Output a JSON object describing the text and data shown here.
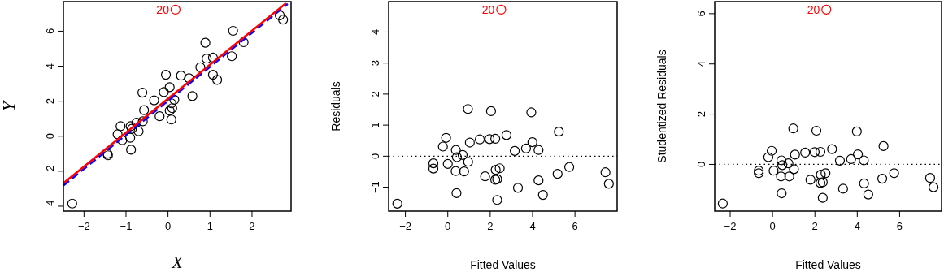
{
  "chart_data": [
    {
      "type": "scatter",
      "xlabel": "X",
      "ylabel": "Y",
      "xlim": [
        -2.49,
        2.93
      ],
      "ylim": [
        -4.28,
        7.69
      ],
      "xticks": [
        -2,
        -1,
        0,
        1,
        2
      ],
      "yticks": [
        -4,
        -2,
        0,
        2,
        4,
        6
      ],
      "marker": "circle",
      "annotations": [
        {
          "text": "20",
          "x": 0.18,
          "y": 7.23
        }
      ],
      "series": [
        {
          "color": "#000000",
          "x": [
            -2.28,
            -1.44,
            -1.43,
            -1.13,
            -1.2,
            -1.09,
            -0.9,
            -0.89,
            -0.88,
            -0.86,
            -0.75,
            -0.7,
            -0.6,
            -0.61,
            -0.57,
            -0.33,
            -0.2,
            -0.1,
            -0.05,
            0.04,
            0.08,
            0.15,
            0.1,
            0.04,
            0.08,
            0.31,
            0.5,
            0.58,
            0.77,
            0.89,
            0.92,
            1.07,
            1.07,
            1.17,
            1.52,
            1.55,
            1.8,
            2.66,
            2.74
          ],
          "values": [
            -3.85,
            -1.0,
            -1.09,
            0.57,
            0.11,
            -0.23,
            -0.09,
            0.57,
            -0.77,
            0.42,
            0.77,
            0.28,
            0.85,
            2.49,
            1.49,
            2.05,
            1.14,
            2.52,
            3.51,
            2.8,
            1.88,
            2.08,
            1.6,
            1.46,
            0.95,
            3.46,
            3.31,
            2.29,
            3.94,
            5.34,
            4.43,
            4.49,
            3.51,
            3.22,
            4.57,
            6.02,
            5.37,
            6.91,
            6.66
          ]
        },
        {
          "color": "#ff0000",
          "x": [
            0.18
          ],
          "values": [
            7.23
          ]
        },
        {
          "type": "line",
          "color": "#0000ff",
          "line_style": "dashed",
          "marker": "none",
          "x": [
            -2.49,
            2.85
          ],
          "values": [
            -2.82,
            7.56
          ]
        },
        {
          "type": "line",
          "color": "#ff0000",
          "line_style": "solid",
          "marker": "none",
          "x": [
            -2.49,
            2.81
          ],
          "values": [
            -2.69,
            7.6
          ]
        }
      ]
    },
    {
      "type": "scatter",
      "xlabel": "Fitted Values",
      "ylabel": "Residuals",
      "xlim": [
        -2.79,
        7.99
      ],
      "ylim": [
        -1.77,
        4.98
      ],
      "xticks": [
        -2,
        0,
        2,
        4,
        6
      ],
      "yticks": [
        -1,
        0,
        1,
        2,
        3,
        4
      ],
      "marker": "circle",
      "annotations": [
        {
          "text": "20",
          "x": 2.52,
          "y": 4.72
        }
      ],
      "ref_lines": [
        {
          "axis": "y",
          "value": 0,
          "line_style": "dotted",
          "color": "#000000"
        }
      ],
      "series": [
        {
          "color": "#000000",
          "x": [
            -2.38,
            -0.68,
            -0.68,
            -0.08,
            -0.23,
            0.0,
            0.37,
            0.38,
            0.41,
            0.43,
            0.7,
            0.77,
            0.96,
            0.95,
            1.04,
            1.51,
            1.76,
            1.97,
            2.04,
            2.24,
            2.26,
            2.45,
            2.24,
            2.33,
            2.33,
            2.77,
            3.16,
            3.31,
            3.69,
            3.94,
            3.99,
            4.28,
            4.28,
            4.49,
            5.18,
            5.24,
            5.73,
            7.44,
            7.6
          ],
          "values": [
            -1.53,
            -0.23,
            -0.4,
            0.59,
            0.31,
            -0.25,
            -0.48,
            0.2,
            -1.19,
            -0.03,
            0.04,
            -0.49,
            -0.18,
            1.52,
            0.44,
            0.54,
            -0.65,
            0.55,
            1.45,
            0.56,
            -0.44,
            -0.39,
            -0.76,
            -0.74,
            -1.41,
            0.68,
            0.17,
            -1.02,
            0.25,
            1.41,
            0.45,
            0.2,
            -0.78,
            -1.25,
            -0.57,
            0.79,
            -0.35,
            -0.52,
            -0.89
          ]
        },
        {
          "color": "#ff0000",
          "x": [
            2.52
          ],
          "values": [
            4.72
          ]
        }
      ]
    },
    {
      "type": "scatter",
      "xlabel": "Fitted Values",
      "ylabel": "Studentized Residuals",
      "xlim": [
        -2.73,
        7.98
      ],
      "ylim": [
        -1.86,
        6.48
      ],
      "xticks": [
        -2,
        0,
        2,
        4,
        6
      ],
      "yticks": [
        0,
        2,
        4,
        6
      ],
      "marker": "circle",
      "annotations": [
        {
          "text": "20",
          "x": 2.54,
          "y": 6.16
        }
      ],
      "ref_lines": [
        {
          "axis": "y",
          "value": 0,
          "line_style": "dotted",
          "color": "#000000"
        }
      ],
      "series": [
        {
          "color": "#000000",
          "x": [
            -2.35,
            -0.65,
            -0.65,
            -0.04,
            -0.2,
            0.05,
            0.4,
            0.42,
            0.43,
            0.46,
            0.75,
            0.79,
            1.01,
            0.98,
            1.06,
            1.54,
            1.79,
            1.99,
            2.07,
            2.26,
            2.28,
            2.5,
            2.26,
            2.37,
            2.37,
            2.81,
            3.18,
            3.33,
            3.71,
            3.98,
            4.03,
            4.31,
            4.32,
            4.52,
            5.18,
            5.24,
            5.74,
            7.44,
            7.6
          ],
          "values": [
            -1.56,
            -0.35,
            -0.25,
            0.54,
            0.29,
            -0.25,
            -0.48,
            0.16,
            -1.15,
            -0.03,
            0.04,
            -0.48,
            -0.19,
            1.43,
            0.39,
            0.47,
            -0.61,
            0.49,
            1.34,
            0.5,
            -0.41,
            -0.35,
            -0.74,
            -0.71,
            -1.33,
            0.61,
            0.15,
            -0.97,
            0.21,
            1.31,
            0.4,
            0.16,
            -0.76,
            -1.2,
            -0.57,
            0.73,
            -0.35,
            -0.54,
            -0.91
          ]
        },
        {
          "color": "#ff0000",
          "x": [
            2.54
          ],
          "values": [
            6.16
          ]
        }
      ]
    }
  ]
}
